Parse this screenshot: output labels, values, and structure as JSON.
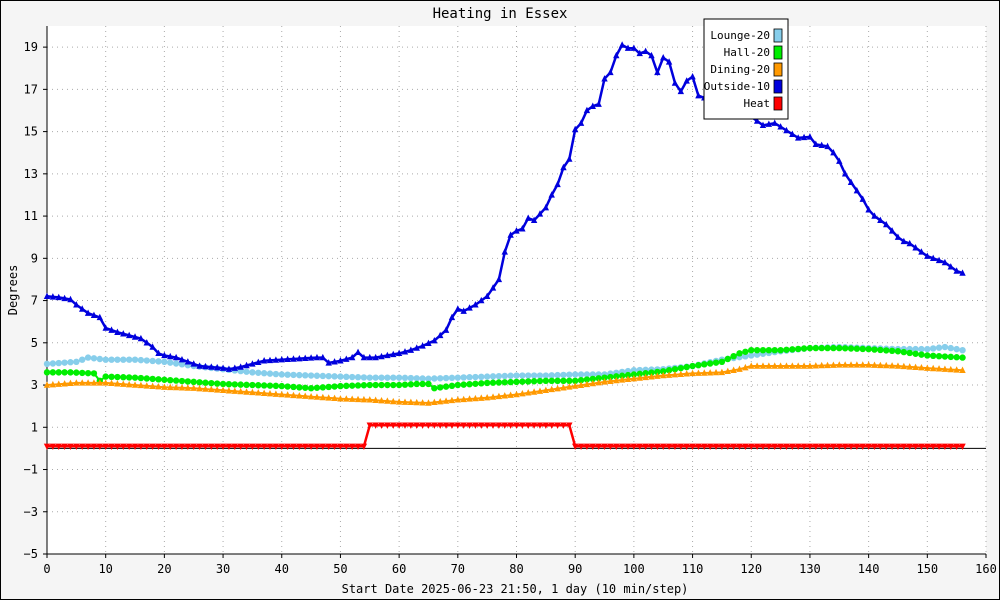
{
  "chart_data": {
    "type": "line",
    "title": "Heating in Essex",
    "xlabel": "Start Date 2025-06-23 21:50, 1 day (10 min/step)",
    "ylabel": "Degrees",
    "xlim": [
      0,
      160
    ],
    "ylim": [
      -5,
      20
    ],
    "xticks": [
      0,
      10,
      20,
      30,
      40,
      50,
      60,
      70,
      80,
      90,
      100,
      110,
      120,
      130,
      140,
      150,
      160
    ],
    "yticks": [
      -5,
      -3,
      -1,
      1,
      3,
      5,
      7,
      9,
      11,
      13,
      15,
      17,
      19
    ],
    "grid": true,
    "legend": "top-right",
    "series": [
      {
        "name": "Lounge-20",
        "color": "#87ceeb",
        "marker": "circle",
        "points": [
          [
            0,
            4.0
          ],
          [
            5,
            4.1
          ],
          [
            7,
            4.3
          ],
          [
            10,
            4.2
          ],
          [
            15,
            4.2
          ],
          [
            20,
            4.1
          ],
          [
            25,
            3.9
          ],
          [
            30,
            3.75
          ],
          [
            35,
            3.6
          ],
          [
            40,
            3.5
          ],
          [
            45,
            3.45
          ],
          [
            50,
            3.4
          ],
          [
            55,
            3.35
          ],
          [
            60,
            3.35
          ],
          [
            65,
            3.3
          ],
          [
            70,
            3.35
          ],
          [
            75,
            3.4
          ],
          [
            80,
            3.45
          ],
          [
            85,
            3.45
          ],
          [
            90,
            3.5
          ],
          [
            95,
            3.5
          ],
          [
            100,
            3.7
          ],
          [
            105,
            3.75
          ],
          [
            110,
            3.9
          ],
          [
            115,
            4.2
          ],
          [
            120,
            4.4
          ],
          [
            125,
            4.6
          ],
          [
            130,
            4.75
          ],
          [
            135,
            4.8
          ],
          [
            140,
            4.75
          ],
          [
            145,
            4.7
          ],
          [
            150,
            4.7
          ],
          [
            153,
            4.8
          ],
          [
            156,
            4.65
          ]
        ]
      },
      {
        "name": "Hall-20",
        "color": "#00ee00",
        "marker": "circle",
        "points": [
          [
            0,
            3.6
          ],
          [
            4,
            3.6
          ],
          [
            8,
            3.55
          ],
          [
            9,
            3.2
          ],
          [
            10,
            3.4
          ],
          [
            15,
            3.35
          ],
          [
            20,
            3.25
          ],
          [
            25,
            3.15
          ],
          [
            30,
            3.05
          ],
          [
            35,
            3.0
          ],
          [
            40,
            2.95
          ],
          [
            45,
            2.85
          ],
          [
            50,
            2.95
          ],
          [
            55,
            3.0
          ],
          [
            60,
            3.0
          ],
          [
            63,
            3.05
          ],
          [
            65,
            3.05
          ],
          [
            66,
            2.85
          ],
          [
            70,
            3.0
          ],
          [
            75,
            3.1
          ],
          [
            80,
            3.15
          ],
          [
            85,
            3.2
          ],
          [
            90,
            3.2
          ],
          [
            95,
            3.35
          ],
          [
            100,
            3.5
          ],
          [
            105,
            3.65
          ],
          [
            110,
            3.9
          ],
          [
            115,
            4.1
          ],
          [
            118,
            4.5
          ],
          [
            120,
            4.65
          ],
          [
            125,
            4.65
          ],
          [
            130,
            4.75
          ],
          [
            135,
            4.75
          ],
          [
            140,
            4.7
          ],
          [
            145,
            4.6
          ],
          [
            150,
            4.4
          ],
          [
            153,
            4.35
          ],
          [
            156,
            4.3
          ]
        ]
      },
      {
        "name": "Dining-20",
        "color": "#ff9900",
        "marker": "triangle",
        "points": [
          [
            0,
            3.0
          ],
          [
            5,
            3.1
          ],
          [
            10,
            3.1
          ],
          [
            15,
            3.0
          ],
          [
            20,
            2.9
          ],
          [
            25,
            2.85
          ],
          [
            30,
            2.75
          ],
          [
            35,
            2.65
          ],
          [
            40,
            2.55
          ],
          [
            45,
            2.45
          ],
          [
            50,
            2.35
          ],
          [
            55,
            2.3
          ],
          [
            60,
            2.2
          ],
          [
            65,
            2.15
          ],
          [
            70,
            2.3
          ],
          [
            75,
            2.4
          ],
          [
            80,
            2.55
          ],
          [
            85,
            2.75
          ],
          [
            90,
            2.95
          ],
          [
            95,
            3.15
          ],
          [
            100,
            3.3
          ],
          [
            105,
            3.45
          ],
          [
            110,
            3.55
          ],
          [
            115,
            3.6
          ],
          [
            118,
            3.75
          ],
          [
            120,
            3.9
          ],
          [
            125,
            3.9
          ],
          [
            130,
            3.9
          ],
          [
            135,
            3.95
          ],
          [
            140,
            3.95
          ],
          [
            145,
            3.9
          ],
          [
            150,
            3.8
          ],
          [
            156,
            3.7
          ]
        ]
      },
      {
        "name": "Outside-10",
        "color": "#0000dd",
        "marker": "triangle",
        "points": [
          [
            0,
            7.2
          ],
          [
            2,
            7.15
          ],
          [
            4,
            7.05
          ],
          [
            5,
            6.8
          ],
          [
            7,
            6.4
          ],
          [
            9,
            6.2
          ],
          [
            10,
            5.7
          ],
          [
            12,
            5.5
          ],
          [
            14,
            5.35
          ],
          [
            16,
            5.2
          ],
          [
            17,
            5.0
          ],
          [
            18,
            4.8
          ],
          [
            19,
            4.5
          ],
          [
            20,
            4.4
          ],
          [
            22,
            4.3
          ],
          [
            24,
            4.1
          ],
          [
            26,
            3.9
          ],
          [
            28,
            3.85
          ],
          [
            30,
            3.8
          ],
          [
            31,
            3.75
          ],
          [
            33,
            3.85
          ],
          [
            35,
            4.0
          ],
          [
            37,
            4.15
          ],
          [
            40,
            4.2
          ],
          [
            43,
            4.25
          ],
          [
            46,
            4.3
          ],
          [
            47,
            4.3
          ],
          [
            48,
            4.05
          ],
          [
            50,
            4.15
          ],
          [
            52,
            4.3
          ],
          [
            53,
            4.55
          ],
          [
            54,
            4.3
          ],
          [
            56,
            4.3
          ],
          [
            58,
            4.4
          ],
          [
            60,
            4.5
          ],
          [
            62,
            4.65
          ],
          [
            64,
            4.85
          ],
          [
            66,
            5.1
          ],
          [
            68,
            5.6
          ],
          [
            69,
            6.2
          ],
          [
            70,
            6.6
          ],
          [
            71,
            6.5
          ],
          [
            73,
            6.8
          ],
          [
            75,
            7.2
          ],
          [
            76,
            7.6
          ],
          [
            77,
            8.0
          ],
          [
            78,
            9.3
          ],
          [
            79,
            10.1
          ],
          [
            80,
            10.3
          ],
          [
            81,
            10.4
          ],
          [
            82,
            10.9
          ],
          [
            83,
            10.8
          ],
          [
            84,
            11.1
          ],
          [
            85,
            11.4
          ],
          [
            86,
            12.0
          ],
          [
            87,
            12.5
          ],
          [
            88,
            13.3
          ],
          [
            89,
            13.7
          ],
          [
            90,
            15.1
          ],
          [
            91,
            15.4
          ],
          [
            92,
            16.0
          ],
          [
            93,
            16.2
          ],
          [
            94,
            16.3
          ],
          [
            95,
            17.5
          ],
          [
            96,
            17.8
          ],
          [
            97,
            18.6
          ],
          [
            98,
            19.1
          ],
          [
            99,
            18.95
          ],
          [
            100,
            18.95
          ],
          [
            101,
            18.7
          ],
          [
            102,
            18.8
          ],
          [
            103,
            18.6
          ],
          [
            104,
            17.8
          ],
          [
            105,
            18.5
          ],
          [
            106,
            18.3
          ],
          [
            107,
            17.3
          ],
          [
            108,
            16.9
          ],
          [
            109,
            17.4
          ],
          [
            110,
            17.6
          ],
          [
            111,
            16.7
          ],
          [
            112,
            16.6
          ],
          [
            114,
            16.5
          ],
          [
            116,
            16.3
          ],
          [
            118,
            15.9
          ],
          [
            120,
            15.7
          ],
          [
            122,
            15.3
          ],
          [
            124,
            15.4
          ],
          [
            126,
            15.05
          ],
          [
            128,
            14.7
          ],
          [
            130,
            14.75
          ],
          [
            131,
            14.4
          ],
          [
            133,
            14.3
          ],
          [
            134,
            14.0
          ],
          [
            135,
            13.6
          ],
          [
            136,
            13.0
          ],
          [
            137,
            12.6
          ],
          [
            138,
            12.2
          ],
          [
            139,
            11.8
          ],
          [
            140,
            11.3
          ],
          [
            141,
            11.0
          ],
          [
            142,
            10.8
          ],
          [
            143,
            10.6
          ],
          [
            144,
            10.3
          ],
          [
            145,
            10.0
          ],
          [
            146,
            9.8
          ],
          [
            147,
            9.7
          ],
          [
            148,
            9.5
          ],
          [
            149,
            9.3
          ],
          [
            150,
            9.1
          ],
          [
            151,
            9.0
          ],
          [
            152,
            8.9
          ],
          [
            153,
            8.8
          ],
          [
            154,
            8.6
          ],
          [
            155,
            8.4
          ],
          [
            156,
            8.3
          ]
        ]
      },
      {
        "name": "Heat",
        "color": "#ff0000",
        "marker": "triangle-down",
        "points": [
          [
            0,
            0.1
          ],
          [
            54,
            0.1
          ],
          [
            55,
            1.1
          ],
          [
            89,
            1.1
          ],
          [
            90,
            0.1
          ],
          [
            156,
            0.1
          ]
        ]
      }
    ]
  }
}
